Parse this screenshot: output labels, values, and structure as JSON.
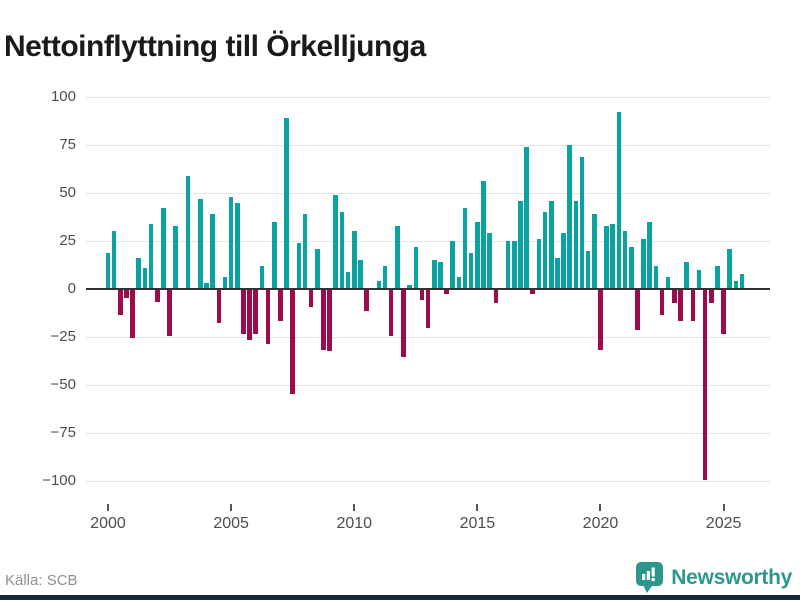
{
  "title": "Nettoinflyttning till Örkelljunga",
  "footer": {
    "source_label": "Källa: SCB",
    "brand": "Newsworthy"
  },
  "colors": {
    "positive": "#0ba3a1",
    "negative": "#9c0b4e",
    "grid": "#e3e3e3",
    "zero_line": "#323232",
    "axis_text": "#4d4d4d",
    "title_text": "#1a1a1a",
    "source_text": "#909090",
    "brand_teal": "#2d978e",
    "bottom_strip": "#14293a"
  },
  "chart_data": {
    "type": "bar",
    "title": "Nettoinflyttning till Örkelljunga",
    "frequency": "quarterly",
    "x_start": "2000 Q1",
    "x_end": "2025 Q4",
    "values": [
      19,
      30,
      -13,
      -4,
      -25,
      16,
      11,
      34,
      -6,
      42,
      -24,
      33,
      0,
      59,
      0,
      47,
      3,
      39,
      -17,
      6,
      48,
      45,
      -23,
      -26,
      -23,
      12,
      -28,
      35,
      -16,
      89,
      -54,
      24,
      39,
      -9,
      21,
      -31,
      -32,
      49,
      40,
      9,
      30,
      15,
      -11,
      0,
      4,
      12,
      -24,
      33,
      -35,
      2,
      22,
      -5,
      -20,
      15,
      14,
      -2,
      25,
      6,
      42,
      19,
      35,
      56,
      29,
      -7,
      0,
      25,
      25,
      46,
      74,
      -2,
      26,
      40,
      46,
      16,
      29,
      75,
      46,
      69,
      20,
      39,
      -31,
      33,
      34,
      92,
      30,
      22,
      -21,
      26,
      35,
      12,
      -13,
      6,
      -7,
      -16,
      14,
      -16,
      10,
      -99,
      -7,
      12,
      -23,
      21,
      4,
      8
    ],
    "ylim": [
      -100,
      100
    ],
    "yticks": [
      100,
      75,
      50,
      25,
      0,
      -25,
      -50,
      -75,
      -100
    ],
    "ytick_labels": [
      "100",
      "75",
      "50",
      "25",
      "0",
      "−25",
      "−50",
      "−75",
      "−100"
    ],
    "xtick_labels": [
      "2000",
      "2005",
      "2010",
      "2015",
      "2020",
      "2025"
    ],
    "grid": true,
    "legend": false,
    "bar_color_positive": "#0ba3a1",
    "bar_color_negative": "#9c0b4e"
  }
}
